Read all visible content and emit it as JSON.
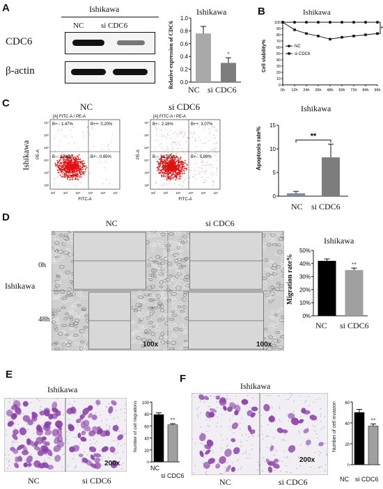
{
  "panel_letters": {
    "a": "A",
    "b": "B",
    "c": "C",
    "d": "D",
    "e": "E",
    "f": "F"
  },
  "A": {
    "title": "Ishikawa",
    "lane_nc": "NC",
    "lane_si": "si CDC6",
    "row1": "CDC6",
    "row2": "β-actin",
    "chart_title": "Ishikawa",
    "ylabel": "Relative expression of CDC6",
    "sig": "*"
  },
  "B": {
    "title": "Ishikawa",
    "ylabel": "Cell viability%",
    "sig": "****",
    "legend_nc": "NC",
    "legend_si": "si CDC6"
  },
  "C": {
    "nc_title": "NC",
    "si_title": "si CDC6",
    "side": "Ishikawa",
    "plot_header": "[A] FITC-A / PE-A",
    "nc_q": [
      "B+-: 1.47%",
      "B++: 0.20%",
      "B--: 97.68%",
      "B+-: 0.65%"
    ],
    "si_q": [
      "B+-: 2.16%",
      "B++: 3.07%",
      "B--: 88.87%",
      "B+-: 5.89%"
    ],
    "xaxis": "FITC-A",
    "yaxis": "PE-A",
    "chart_title": "Ishikawa",
    "ylabel": "Apoptosis rate%",
    "sig": "**"
  },
  "D": {
    "nc": "NC",
    "si": "si CDC6",
    "side": "Ishikawa",
    "t0": "0h",
    "t48": "48h",
    "mag": "100x",
    "chart_title": "Ishikawa",
    "ylabel": "Migration rate%",
    "sig": "**"
  },
  "E": {
    "title": "Ishikawa",
    "nc": "NC",
    "si": "si CDC6",
    "mag": "200x",
    "ylabel": "Number of cell migrations",
    "sig": "**"
  },
  "F": {
    "title": "Ishikawa",
    "nc": "NC",
    "si": "si CDC6",
    "mag": "200x",
    "ylabel": "Number of cell invasion",
    "sig": "**"
  },
  "colors": {
    "dark": "#111111",
    "grey": "#999999",
    "purple": "#8a3fa8",
    "flow": "#e21212"
  },
  "chart_data": [
    {
      "id": "A",
      "type": "bar",
      "categories": [
        "NC",
        "si CDC6"
      ],
      "values": [
        0.76,
        0.3
      ],
      "errors": [
        0.11,
        0.08
      ],
      "ylim": [
        0,
        1.0
      ],
      "yticks": [
        0.0,
        0.2,
        0.4,
        0.6,
        0.8,
        1.0
      ],
      "tick_labels": [
        "0.0",
        "0.2",
        "0.4",
        "0.6",
        "0.8",
        "1.0"
      ],
      "colors": [
        "#a9a9a9",
        "#7d7d7d"
      ]
    },
    {
      "id": "B",
      "type": "line",
      "x": [
        "0h",
        "12h",
        "24h",
        "36h",
        "48h",
        "60h",
        "72h",
        "84h",
        "96h"
      ],
      "series": [
        {
          "name": "NC",
          "values": [
            100,
            100,
            100,
            100,
            100,
            100,
            100,
            100,
            100
          ]
        },
        {
          "name": "si CDC6",
          "values": [
            100,
            88,
            82,
            78,
            73,
            76,
            78,
            80,
            82
          ]
        }
      ],
      "ylim": [
        0,
        100
      ],
      "yticks": [
        0,
        10,
        20,
        30,
        40,
        50,
        60,
        70,
        80,
        90,
        100
      ]
    },
    {
      "id": "C",
      "type": "bar",
      "categories": [
        "NC",
        "si CDC6"
      ],
      "values": [
        0.6,
        8.2
      ],
      "errors": [
        0.4,
        2.8
      ],
      "ylim": [
        0,
        15
      ],
      "yticks": [
        0,
        5,
        10,
        15
      ],
      "tick_labels": [
        "0",
        "5",
        "10",
        "15"
      ],
      "colors": [
        "#7d8aa0",
        "#7d7d7d"
      ]
    },
    {
      "id": "D",
      "type": "bar",
      "categories": [
        "NC",
        "si CDC6"
      ],
      "values": [
        42,
        35
      ],
      "errors": [
        1.5,
        1.5
      ],
      "ylim": [
        0,
        50
      ],
      "yticks": [
        0,
        10,
        20,
        30,
        40,
        50
      ],
      "tick_labels": [
        "0%",
        "10%",
        "20%",
        "30%",
        "40%",
        "50%"
      ],
      "colors": [
        "#000000",
        "#a0a0a0"
      ]
    },
    {
      "id": "E",
      "type": "bar",
      "categories": [
        "NC",
        "si CDC6"
      ],
      "values": [
        79,
        62
      ],
      "errors": [
        3,
        2
      ],
      "ylim": [
        0,
        100
      ],
      "yticks": [
        0,
        20,
        40,
        60,
        80,
        100
      ],
      "tick_labels": [
        "0",
        "20",
        "40",
        "60",
        "80",
        "100"
      ],
      "colors": [
        "#000000",
        "#a0a0a0"
      ]
    },
    {
      "id": "F",
      "type": "bar",
      "categories": [
        "NC",
        "si CDC6"
      ],
      "values": [
        50,
        37
      ],
      "errors": [
        3,
        2
      ],
      "ylim": [
        0,
        60
      ],
      "yticks": [
        0,
        20,
        40,
        60
      ],
      "tick_labels": [
        "0",
        "20",
        "40",
        "60"
      ],
      "colors": [
        "#000000",
        "#a0a0a0"
      ]
    }
  ]
}
